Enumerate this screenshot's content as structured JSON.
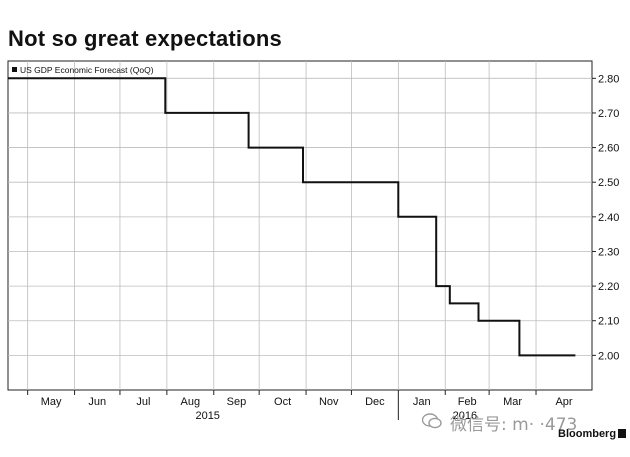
{
  "title": "Not so great expectations",
  "source": "Bloomberg",
  "watermark": "微信号: m· ·473",
  "chart_data": {
    "type": "line",
    "step": true,
    "title": "Not so great expectations",
    "legend": "US GDP Economic Forecast (QoQ)",
    "legend_position": "top-left",
    "xlabel": "",
    "ylabel": "",
    "ylim": [
      1.9,
      2.85
    ],
    "y_axis_side": "right",
    "y_ticks": [
      2.0,
      2.1,
      2.2,
      2.3,
      2.4,
      2.5,
      2.6,
      2.7,
      2.8
    ],
    "x_range": [
      "2015-04-18",
      "2016-05-08"
    ],
    "x_ticks": [
      {
        "date": "2015-05-01",
        "label": "May"
      },
      {
        "date": "2015-06-01",
        "label": "Jun"
      },
      {
        "date": "2015-07-01",
        "label": "Jul"
      },
      {
        "date": "2015-08-01",
        "label": "Aug"
      },
      {
        "date": "2015-09-01",
        "label": "Sep"
      },
      {
        "date": "2015-10-01",
        "label": "Oct"
      },
      {
        "date": "2015-11-01",
        "label": "Nov"
      },
      {
        "date": "2015-12-01",
        "label": "Dec"
      },
      {
        "date": "2016-01-01",
        "label": "Jan"
      },
      {
        "date": "2016-02-01",
        "label": "Feb"
      },
      {
        "date": "2016-03-01",
        "label": "Mar"
      },
      {
        "date": "2016-04-01",
        "label": "Apr"
      }
    ],
    "year_labels": [
      {
        "year": "2015",
        "start": "2015-04-18",
        "end": "2016-01-01"
      },
      {
        "year": "2016",
        "start": "2016-01-01",
        "end": "2016-05-08"
      }
    ],
    "series": [
      {
        "name": "US GDP Economic Forecast (QoQ)",
        "color": "#111111",
        "points": [
          {
            "date": "2015-04-18",
            "value": 2.8
          },
          {
            "date": "2015-07-31",
            "value": 2.7
          },
          {
            "date": "2015-09-24",
            "value": 2.6
          },
          {
            "date": "2015-10-30",
            "value": 2.5
          },
          {
            "date": "2016-01-01",
            "value": 2.4
          },
          {
            "date": "2016-01-26",
            "value": 2.2
          },
          {
            "date": "2016-02-04",
            "value": 2.15
          },
          {
            "date": "2016-02-23",
            "value": 2.1
          },
          {
            "date": "2016-03-21",
            "value": 2.0
          },
          {
            "date": "2016-04-27",
            "value": 2.0
          }
        ]
      }
    ]
  }
}
